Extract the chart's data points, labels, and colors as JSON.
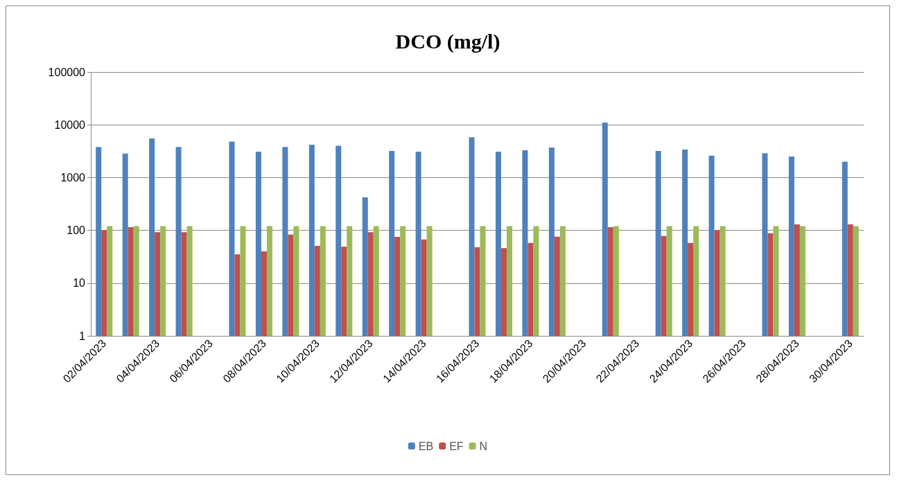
{
  "chart_data": {
    "type": "bar",
    "title": "DCO (mg/l)",
    "categories": [
      "02/04/2023",
      null,
      "04/04/2023",
      null,
      "06/04/2023",
      null,
      "08/04/2023",
      null,
      "10/04/2023",
      null,
      "12/04/2023",
      null,
      "14/04/2023",
      null,
      "16/04/2023",
      null,
      "18/04/2023",
      null,
      "20/04/2023",
      null,
      "22/04/2023",
      null,
      "24/04/2023",
      null,
      "26/04/2023",
      null,
      "28/04/2023",
      null,
      "30/04/2023"
    ],
    "series": [
      {
        "name": "EB",
        "color": "#4f81bd",
        "values": [
          3800,
          2850,
          5500,
          3800,
          null,
          4800,
          3100,
          3800,
          4200,
          4000,
          420,
          3200,
          3100,
          null,
          5800,
          3100,
          3300,
          3700,
          null,
          11000,
          null,
          3200,
          3400,
          2600,
          null,
          2900,
          2500,
          null,
          2000
        ]
      },
      {
        "name": "EF",
        "color": "#c0504d",
        "values": [
          100,
          115,
          92,
          92,
          null,
          35,
          40,
          83,
          51,
          49,
          92,
          75,
          67,
          null,
          48,
          46,
          58,
          76,
          null,
          115,
          null,
          78,
          58,
          100,
          null,
          88,
          130,
          null,
          130
        ]
      },
      {
        "name": "N",
        "color": "#9bbb59",
        "values": [
          120,
          120,
          120,
          120,
          null,
          120,
          120,
          120,
          120,
          120,
          120,
          120,
          120,
          null,
          120,
          120,
          120,
          120,
          null,
          120,
          null,
          120,
          120,
          120,
          null,
          120,
          120,
          null,
          120
        ]
      }
    ],
    "log": true,
    "ylim": [
      1,
      100000
    ],
    "yticks": [
      1,
      10,
      100,
      1000,
      10000,
      100000
    ],
    "grid": "y",
    "legend": "bottom"
  }
}
